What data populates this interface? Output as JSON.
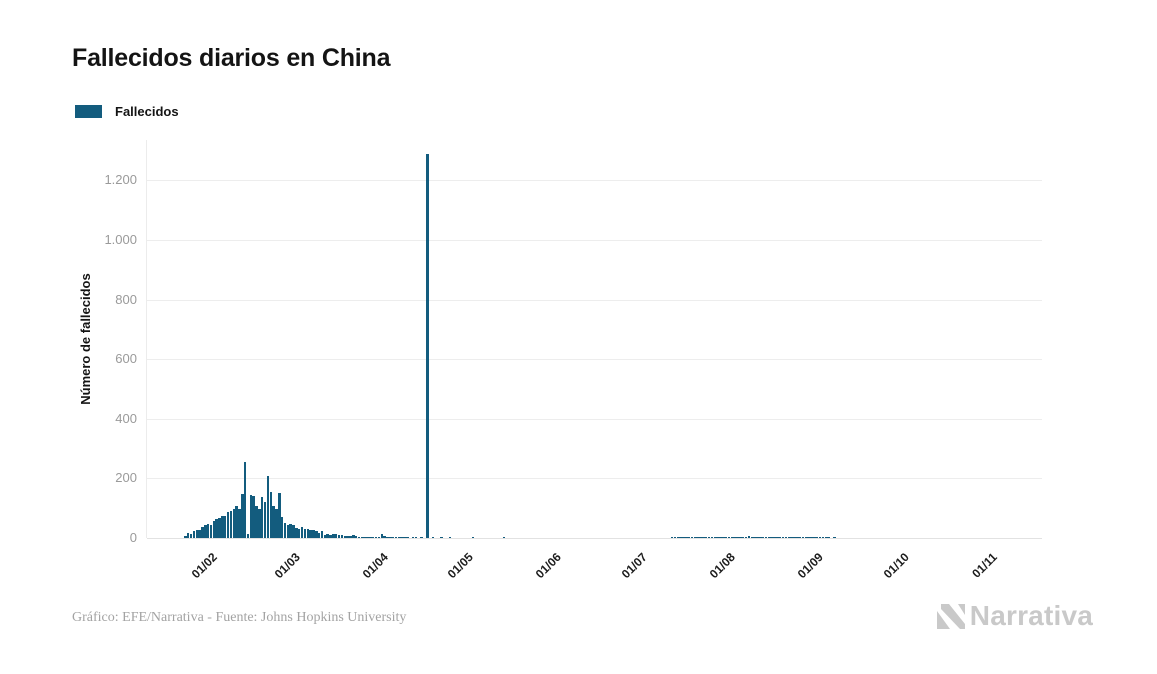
{
  "header": {
    "title": "Fallecidos diarios en China"
  },
  "legend": {
    "items": [
      {
        "label": "Fallecidos",
        "color": "#135c7e"
      }
    ]
  },
  "chart_data": {
    "type": "bar",
    "title": "Fallecidos diarios en China",
    "xlabel": "",
    "ylabel": "Número de fallecidos",
    "ylim": [
      0,
      1300
    ],
    "grid": true,
    "legend_position": "top-left",
    "background": "#ffffff",
    "bar_color": "#135c7e",
    "y_ticks": [
      {
        "label": "0",
        "value": 0
      },
      {
        "label": "200",
        "value": 200
      },
      {
        "label": "400",
        "value": 400
      },
      {
        "label": "600",
        "value": 600
      },
      {
        "label": "800",
        "value": 800
      },
      {
        "label": "1.000",
        "value": 1000
      },
      {
        "label": "1.200",
        "value": 1200
      }
    ],
    "x_ticks": [
      {
        "label": "01/02",
        "day_index": 9
      },
      {
        "label": "01/03",
        "day_index": 38
      },
      {
        "label": "01/04",
        "day_index": 69
      },
      {
        "label": "01/05",
        "day_index": 99
      },
      {
        "label": "01/06",
        "day_index": 130
      },
      {
        "label": "01/07",
        "day_index": 160
      },
      {
        "label": "01/08",
        "day_index": 191
      },
      {
        "label": "01/09",
        "day_index": 222
      },
      {
        "label": "01/10",
        "day_index": 252
      },
      {
        "label": "01/11",
        "day_index": 283
      }
    ],
    "series": [
      {
        "name": "Fallecidos",
        "color": "#135c7e",
        "start_date": "23/01/2020",
        "frequency": "daily",
        "values": [
          8,
          16,
          15,
          24,
          26,
          26,
          38,
          43,
          46,
          45,
          57,
          64,
          66,
          73,
          73,
          86,
          89,
          97,
          108,
          97,
          146,
          254,
          13,
          143,
          142,
          106,
          98,
          136,
          122,
          208,
          155,
          109,
          97,
          150,
          71,
          52,
          44,
          47,
          42,
          35,
          31,
          38,
          31,
          30,
          28,
          27,
          22,
          17,
          22,
          11,
          13,
          10,
          14,
          13,
          11,
          11,
          8,
          7,
          6,
          9,
          7,
          4,
          5,
          5,
          3,
          5,
          3,
          2,
          5,
          12,
          6,
          4,
          4,
          3,
          2,
          2,
          2,
          1,
          1,
          0,
          1,
          1,
          0,
          1,
          0,
          1290,
          0,
          1,
          0,
          0,
          1,
          0,
          0,
          1,
          0,
          0,
          0,
          0,
          0,
          0,
          0,
          1,
          0,
          0,
          0,
          0,
          0,
          0,
          0,
          0,
          0,
          0,
          1,
          0,
          0,
          0,
          0,
          0,
          0,
          0,
          0,
          0,
          0,
          0,
          0,
          0,
          0,
          0,
          0,
          0,
          0,
          0,
          0,
          0,
          0,
          0,
          0,
          0,
          0,
          0,
          0,
          0,
          0,
          0,
          0,
          0,
          0,
          0,
          0,
          0,
          0,
          0,
          0,
          0,
          0,
          0,
          0,
          0,
          0,
          0,
          0,
          0,
          0,
          0,
          0,
          0,
          0,
          0,
          0,
          0,
          0,
          1,
          2,
          1,
          3,
          2,
          1,
          2,
          3,
          2,
          4,
          3,
          2,
          3,
          4,
          3,
          2,
          3,
          2,
          1,
          2,
          3,
          4,
          2,
          3,
          5,
          4,
          3,
          6,
          4,
          3,
          2,
          4,
          5,
          3,
          2,
          3,
          2,
          4,
          3,
          2,
          3,
          2,
          1,
          2,
          3,
          2,
          1,
          2,
          1,
          1,
          2,
          2,
          1,
          2,
          1,
          1,
          0,
          1,
          0,
          0,
          0,
          0,
          0,
          0,
          0,
          0,
          0,
          0,
          0,
          0,
          0,
          0,
          0,
          0,
          0,
          0,
          0,
          0,
          0,
          0,
          0,
          0,
          0,
          0,
          0,
          0,
          0,
          0,
          0,
          0,
          0,
          0,
          0,
          0,
          0,
          0,
          0,
          0,
          0,
          0,
          0,
          0,
          0,
          0,
          0,
          0,
          0,
          0,
          0,
          0,
          0,
          0,
          0,
          0,
          0,
          0,
          0,
          0,
          0,
          0,
          0,
          0,
          0,
          0,
          0,
          0,
          0,
          0,
          0
        ]
      }
    ]
  },
  "footer": {
    "credit": "Gráfico: EFE/Narrativa - Fuente: Johns Hopkins University",
    "logo_text": "Narrativa"
  }
}
